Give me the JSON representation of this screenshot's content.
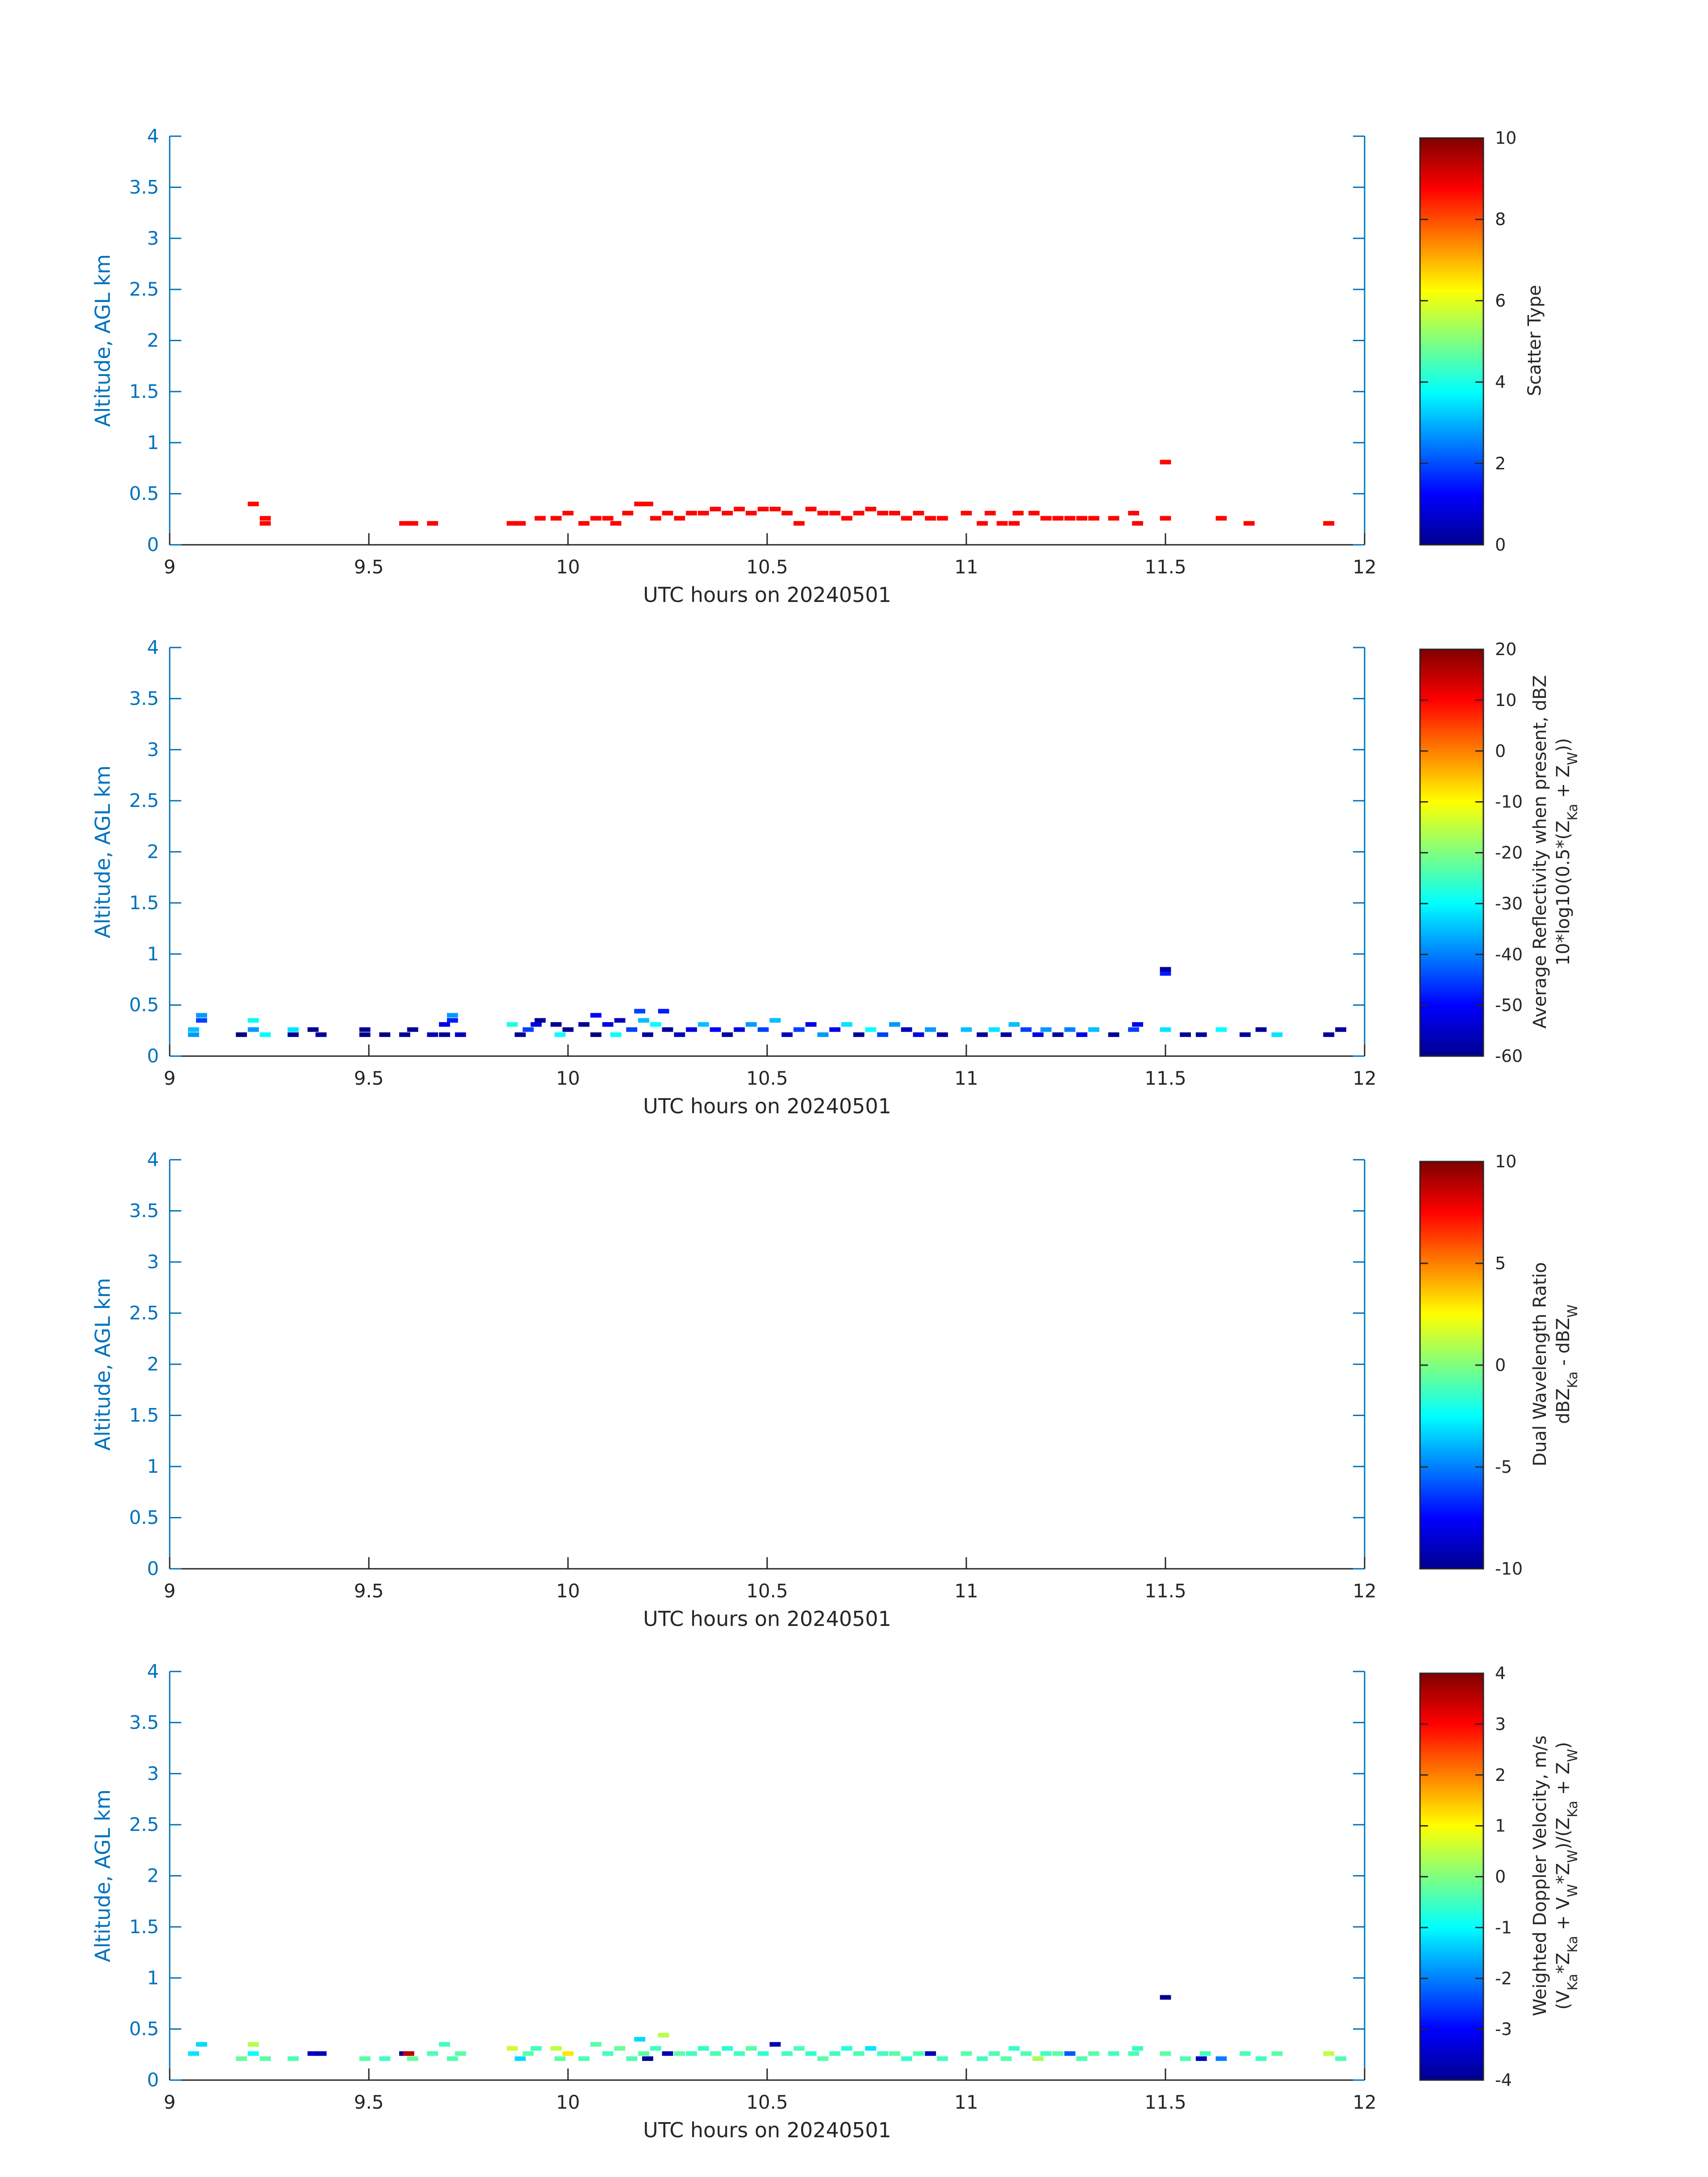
{
  "chart_data": [
    {
      "type": "heatmap",
      "xlabel": "UTC hours on 20240501",
      "ylabel": "Altitude, AGL km",
      "xlim": [
        9,
        12
      ],
      "ylim": [
        0,
        4
      ],
      "xticks": [
        "9",
        "9.5",
        "10",
        "10.5",
        "11",
        "11.5",
        "12"
      ],
      "yticks": [
        "0",
        "0.5",
        "1",
        "1.5",
        "2",
        "2.5",
        "3",
        "3.5",
        "4"
      ],
      "colorbar": {
        "label_lines": [
          "Scatter Type"
        ],
        "clim": [
          0,
          10
        ],
        "ticks": [
          "0",
          "2",
          "4",
          "6",
          "8",
          "10"
        ]
      },
      "cells": [
        [
          9.21,
          0.4,
          8.7
        ],
        [
          9.24,
          0.26,
          8.7
        ],
        [
          9.24,
          0.21,
          8.7
        ],
        [
          9.59,
          0.21,
          8.7
        ],
        [
          9.61,
          0.21,
          8.7
        ],
        [
          9.66,
          0.21,
          8.7
        ],
        [
          9.86,
          0.21,
          8.7
        ],
        [
          9.88,
          0.21,
          8.7
        ],
        [
          9.93,
          0.26,
          8.7
        ],
        [
          9.97,
          0.26,
          8.7
        ],
        [
          10.0,
          0.31,
          8.7
        ],
        [
          10.04,
          0.21,
          8.7
        ],
        [
          10.07,
          0.26,
          8.7
        ],
        [
          10.1,
          0.26,
          8.7
        ],
        [
          10.12,
          0.21,
          8.7
        ],
        [
          10.15,
          0.31,
          8.7
        ],
        [
          10.18,
          0.4,
          8.7
        ],
        [
          10.2,
          0.4,
          8.7
        ],
        [
          10.22,
          0.26,
          8.7
        ],
        [
          10.25,
          0.31,
          8.7
        ],
        [
          10.28,
          0.26,
          8.7
        ],
        [
          10.31,
          0.31,
          8.7
        ],
        [
          10.34,
          0.31,
          8.7
        ],
        [
          10.37,
          0.35,
          8.7
        ],
        [
          10.4,
          0.31,
          8.7
        ],
        [
          10.43,
          0.35,
          8.7
        ],
        [
          10.46,
          0.31,
          8.7
        ],
        [
          10.49,
          0.35,
          8.7
        ],
        [
          10.52,
          0.35,
          8.7
        ],
        [
          10.55,
          0.31,
          8.7
        ],
        [
          10.58,
          0.21,
          8.7
        ],
        [
          10.61,
          0.35,
          8.7
        ],
        [
          10.64,
          0.31,
          8.7
        ],
        [
          10.67,
          0.31,
          8.7
        ],
        [
          10.7,
          0.26,
          8.7
        ],
        [
          10.73,
          0.31,
          8.7
        ],
        [
          10.76,
          0.35,
          8.7
        ],
        [
          10.79,
          0.31,
          8.7
        ],
        [
          10.82,
          0.31,
          8.7
        ],
        [
          10.85,
          0.26,
          8.7
        ],
        [
          10.88,
          0.31,
          8.7
        ],
        [
          10.91,
          0.26,
          8.7
        ],
        [
          10.94,
          0.26,
          8.7
        ],
        [
          11.0,
          0.31,
          8.7
        ],
        [
          11.04,
          0.21,
          8.7
        ],
        [
          11.06,
          0.31,
          8.7
        ],
        [
          11.09,
          0.21,
          8.7
        ],
        [
          11.12,
          0.21,
          8.7
        ],
        [
          11.13,
          0.31,
          8.7
        ],
        [
          11.17,
          0.31,
          8.7
        ],
        [
          11.2,
          0.26,
          8.7
        ],
        [
          11.23,
          0.26,
          8.7
        ],
        [
          11.26,
          0.26,
          8.7
        ],
        [
          11.29,
          0.26,
          8.7
        ],
        [
          11.32,
          0.26,
          8.7
        ],
        [
          11.37,
          0.26,
          8.7
        ],
        [
          11.42,
          0.31,
          8.7
        ],
        [
          11.43,
          0.21,
          8.7
        ],
        [
          11.5,
          0.81,
          8.7
        ],
        [
          11.5,
          0.26,
          8.7
        ],
        [
          11.64,
          0.26,
          8.7
        ],
        [
          11.71,
          0.21,
          8.7
        ],
        [
          11.91,
          0.21,
          8.7
        ]
      ]
    },
    {
      "type": "heatmap",
      "xlabel": "UTC hours on 20240501",
      "ylabel": "Altitude, AGL km",
      "xlim": [
        9,
        12
      ],
      "ylim": [
        0,
        4
      ],
      "xticks": [
        "9",
        "9.5",
        "10",
        "10.5",
        "11",
        "11.5",
        "12"
      ],
      "yticks": [
        "0",
        "0.5",
        "1",
        "1.5",
        "2",
        "2.5",
        "3",
        "3.5",
        "4"
      ],
      "colorbar": {
        "label_lines": [
          "Average Reflectivity when present, dBZ",
          "10*log10(0.5*(Z_Ka + Z_W))"
        ],
        "clim": [
          -60,
          20
        ],
        "ticks": [
          "-60",
          "-50",
          "-40",
          "-30",
          "-20",
          "-10",
          "0",
          "10",
          "20"
        ]
      },
      "cells": [
        [
          9.06,
          0.21,
          -38
        ],
        [
          9.06,
          0.26,
          -35
        ],
        [
          9.08,
          0.35,
          -45
        ],
        [
          9.08,
          0.4,
          -38
        ],
        [
          9.18,
          0.21,
          -60
        ],
        [
          9.21,
          0.26,
          -38
        ],
        [
          9.21,
          0.35,
          -30
        ],
        [
          9.24,
          0.21,
          -30
        ],
        [
          9.31,
          0.21,
          -58
        ],
        [
          9.31,
          0.26,
          -32
        ],
        [
          9.36,
          0.26,
          -58
        ],
        [
          9.38,
          0.21,
          -58
        ],
        [
          9.49,
          0.21,
          -60
        ],
        [
          9.49,
          0.26,
          -58
        ],
        [
          9.54,
          0.21,
          -60
        ],
        [
          9.59,
          0.21,
          -58
        ],
        [
          9.61,
          0.26,
          -58
        ],
        [
          9.66,
          0.21,
          -55
        ],
        [
          9.69,
          0.21,
          -58
        ],
        [
          9.69,
          0.31,
          -52
        ],
        [
          9.71,
          0.4,
          -38
        ],
        [
          9.71,
          0.35,
          -48
        ],
        [
          9.73,
          0.21,
          -55
        ],
        [
          9.86,
          0.31,
          -28
        ],
        [
          9.88,
          0.21,
          -58
        ],
        [
          9.9,
          0.26,
          -45
        ],
        [
          9.92,
          0.31,
          -52
        ],
        [
          9.93,
          0.35,
          -58
        ],
        [
          9.97,
          0.31,
          -58
        ],
        [
          9.98,
          0.21,
          -30
        ],
        [
          10.0,
          0.26,
          -58
        ],
        [
          10.04,
          0.31,
          -58
        ],
        [
          10.07,
          0.4,
          -50
        ],
        [
          10.07,
          0.21,
          -60
        ],
        [
          10.1,
          0.31,
          -52
        ],
        [
          10.12,
          0.21,
          -30
        ],
        [
          10.13,
          0.35,
          -55
        ],
        [
          10.16,
          0.26,
          -45
        ],
        [
          10.18,
          0.44,
          -45
        ],
        [
          10.19,
          0.35,
          -35
        ],
        [
          10.2,
          0.21,
          -58
        ],
        [
          10.22,
          0.31,
          -30
        ],
        [
          10.24,
          0.44,
          -48
        ],
        [
          10.25,
          0.26,
          -58
        ],
        [
          10.28,
          0.21,
          -55
        ],
        [
          10.31,
          0.26,
          -52
        ],
        [
          10.34,
          0.31,
          -35
        ],
        [
          10.37,
          0.26,
          -50
        ],
        [
          10.4,
          0.21,
          -58
        ],
        [
          10.43,
          0.26,
          -52
        ],
        [
          10.46,
          0.31,
          -38
        ],
        [
          10.49,
          0.26,
          -45
        ],
        [
          10.52,
          0.35,
          -35
        ],
        [
          10.55,
          0.21,
          -55
        ],
        [
          10.58,
          0.26,
          -45
        ],
        [
          10.61,
          0.31,
          -52
        ],
        [
          10.64,
          0.21,
          -38
        ],
        [
          10.67,
          0.26,
          -52
        ],
        [
          10.7,
          0.31,
          -32
        ],
        [
          10.73,
          0.21,
          -58
        ],
        [
          10.76,
          0.26,
          -30
        ],
        [
          10.79,
          0.21,
          -45
        ],
        [
          10.82,
          0.31,
          -38
        ],
        [
          10.85,
          0.26,
          -55
        ],
        [
          10.88,
          0.21,
          -52
        ],
        [
          10.91,
          0.26,
          -38
        ],
        [
          10.94,
          0.21,
          -58
        ],
        [
          11.0,
          0.26,
          -35
        ],
        [
          11.04,
          0.21,
          -58
        ],
        [
          11.07,
          0.26,
          -32
        ],
        [
          11.1,
          0.21,
          -58
        ],
        [
          11.12,
          0.31,
          -35
        ],
        [
          11.15,
          0.26,
          -45
        ],
        [
          11.18,
          0.21,
          -52
        ],
        [
          11.2,
          0.26,
          -38
        ],
        [
          11.23,
          0.21,
          -58
        ],
        [
          11.26,
          0.26,
          -40
        ],
        [
          11.29,
          0.21,
          -52
        ],
        [
          11.32,
          0.26,
          -35
        ],
        [
          11.37,
          0.21,
          -58
        ],
        [
          11.42,
          0.26,
          -45
        ],
        [
          11.43,
          0.31,
          -52
        ],
        [
          11.5,
          0.81,
          -48
        ],
        [
          11.5,
          0.85,
          -58
        ],
        [
          11.5,
          0.26,
          -32
        ],
        [
          11.55,
          0.21,
          -58
        ],
        [
          11.59,
          0.21,
          -58
        ],
        [
          11.64,
          0.26,
          -30
        ],
        [
          11.7,
          0.21,
          -58
        ],
        [
          11.74,
          0.26,
          -58
        ],
        [
          11.78,
          0.21,
          -32
        ],
        [
          11.91,
          0.21,
          -58
        ],
        [
          11.94,
          0.26,
          -58
        ]
      ]
    },
    {
      "type": "heatmap",
      "xlabel": "UTC hours on 20240501",
      "ylabel": "Altitude, AGL km",
      "xlim": [
        9,
        12
      ],
      "ylim": [
        0,
        4
      ],
      "xticks": [
        "9",
        "9.5",
        "10",
        "10.5",
        "11",
        "11.5",
        "12"
      ],
      "yticks": [
        "0",
        "0.5",
        "1",
        "1.5",
        "2",
        "2.5",
        "3",
        "3.5",
        "4"
      ],
      "colorbar": {
        "label_lines": [
          "Dual Wavelength Ratio",
          "dBZ_Ka - dBZ_W"
        ],
        "clim": [
          -10,
          10
        ],
        "ticks": [
          "-10",
          "-5",
          "0",
          "5",
          "10"
        ]
      },
      "cells": []
    },
    {
      "type": "heatmap",
      "xlabel": "UTC hours on 20240501",
      "ylabel": "Altitude, AGL km",
      "xlim": [
        9,
        12
      ],
      "ylim": [
        0,
        4
      ],
      "xticks": [
        "9",
        "9.5",
        "10",
        "10.5",
        "11",
        "11.5",
        "12"
      ],
      "yticks": [
        "0",
        "0.5",
        "1",
        "1.5",
        "2",
        "2.5",
        "3",
        "3.5",
        "4"
      ],
      "colorbar": {
        "label_lines": [
          "Weighted Doppler Velocity, m/s",
          "(V_Ka*Z_Ka + V_W*Z_W)/(Z_Ka + Z_W)"
        ],
        "clim": [
          -4,
          4
        ],
        "ticks": [
          "-4",
          "-3",
          "-2",
          "-1",
          "0",
          "1",
          "2",
          "3",
          "4"
        ]
      },
      "cells": [
        [
          9.06,
          0.26,
          -1.2
        ],
        [
          9.08,
          0.35,
          -1.3
        ],
        [
          9.18,
          0.21,
          -0.2
        ],
        [
          9.21,
          0.35,
          0.4
        ],
        [
          9.21,
          0.26,
          -1.0
        ],
        [
          9.24,
          0.21,
          -0.3
        ],
        [
          9.31,
          0.21,
          -0.4
        ],
        [
          9.36,
          0.26,
          -3.5
        ],
        [
          9.38,
          0.26,
          -3.5
        ],
        [
          9.49,
          0.21,
          -0.3
        ],
        [
          9.54,
          0.21,
          -0.5
        ],
        [
          9.59,
          0.26,
          -3.8
        ],
        [
          9.6,
          0.26,
          3.5
        ],
        [
          9.61,
          0.21,
          -0.2
        ],
        [
          9.66,
          0.26,
          -0.4
        ],
        [
          9.69,
          0.35,
          -0.5
        ],
        [
          9.71,
          0.21,
          -0.4
        ],
        [
          9.73,
          0.26,
          -0.3
        ],
        [
          9.86,
          0.31,
          0.6
        ],
        [
          9.88,
          0.21,
          -1.3
        ],
        [
          9.9,
          0.26,
          -0.3
        ],
        [
          9.92,
          0.31,
          -0.5
        ],
        [
          9.97,
          0.31,
          0.5
        ],
        [
          9.98,
          0.21,
          -0.3
        ],
        [
          10.0,
          0.26,
          1.2
        ],
        [
          10.04,
          0.21,
          -0.4
        ],
        [
          10.07,
          0.35,
          -0.3
        ],
        [
          10.1,
          0.26,
          -0.5
        ],
        [
          10.13,
          0.31,
          -0.2
        ],
        [
          10.16,
          0.21,
          -0.4
        ],
        [
          10.18,
          0.4,
          -1.3
        ],
        [
          10.19,
          0.26,
          -0.3
        ],
        [
          10.2,
          0.21,
          -3.8
        ],
        [
          10.22,
          0.31,
          -0.5
        ],
        [
          10.24,
          0.44,
          0.4
        ],
        [
          10.25,
          0.26,
          -3.6
        ],
        [
          10.28,
          0.26,
          -0.3
        ],
        [
          10.31,
          0.26,
          -0.5
        ],
        [
          10.34,
          0.31,
          -0.6
        ],
        [
          10.37,
          0.26,
          -0.4
        ],
        [
          10.4,
          0.31,
          -0.7
        ],
        [
          10.43,
          0.26,
          -0.5
        ],
        [
          10.46,
          0.31,
          -0.3
        ],
        [
          10.49,
          0.26,
          -0.6
        ],
        [
          10.52,
          0.35,
          -3.6
        ],
        [
          10.55,
          0.26,
          -0.5
        ],
        [
          10.58,
          0.31,
          -0.4
        ],
        [
          10.61,
          0.26,
          -0.6
        ],
        [
          10.64,
          0.21,
          -0.3
        ],
        [
          10.67,
          0.26,
          -0.5
        ],
        [
          10.7,
          0.31,
          -0.7
        ],
        [
          10.73,
          0.26,
          -0.4
        ],
        [
          10.76,
          0.31,
          -1.2
        ],
        [
          10.79,
          0.26,
          -0.5
        ],
        [
          10.82,
          0.26,
          -0.3
        ],
        [
          10.85,
          0.21,
          -0.6
        ],
        [
          10.88,
          0.26,
          -0.4
        ],
        [
          10.91,
          0.26,
          -3.5
        ],
        [
          10.94,
          0.21,
          -0.5
        ],
        [
          11.0,
          0.26,
          -0.3
        ],
        [
          11.04,
          0.21,
          -0.5
        ],
        [
          11.07,
          0.26,
          -0.4
        ],
        [
          11.1,
          0.21,
          -0.3
        ],
        [
          11.12,
          0.31,
          -0.6
        ],
        [
          11.15,
          0.26,
          -0.4
        ],
        [
          11.18,
          0.21,
          0.3
        ],
        [
          11.2,
          0.26,
          -0.5
        ],
        [
          11.23,
          0.26,
          -0.3
        ],
        [
          11.26,
          0.26,
          -2.3
        ],
        [
          11.29,
          0.21,
          -0.4
        ],
        [
          11.32,
          0.26,
          -0.3
        ],
        [
          11.37,
          0.26,
          -0.5
        ],
        [
          11.42,
          0.26,
          -0.4
        ],
        [
          11.43,
          0.31,
          -0.6
        ],
        [
          11.5,
          0.81,
          -3.9
        ],
        [
          11.5,
          0.26,
          -0.3
        ],
        [
          11.55,
          0.21,
          -0.4
        ],
        [
          11.59,
          0.21,
          -3.6
        ],
        [
          11.6,
          0.26,
          -0.5
        ],
        [
          11.64,
          0.21,
          -2.0
        ],
        [
          11.7,
          0.26,
          -0.4
        ],
        [
          11.74,
          0.21,
          -0.5
        ],
        [
          11.78,
          0.26,
          -0.3
        ],
        [
          11.91,
          0.26,
          0.5
        ],
        [
          11.94,
          0.21,
          -0.4
        ]
      ]
    }
  ]
}
